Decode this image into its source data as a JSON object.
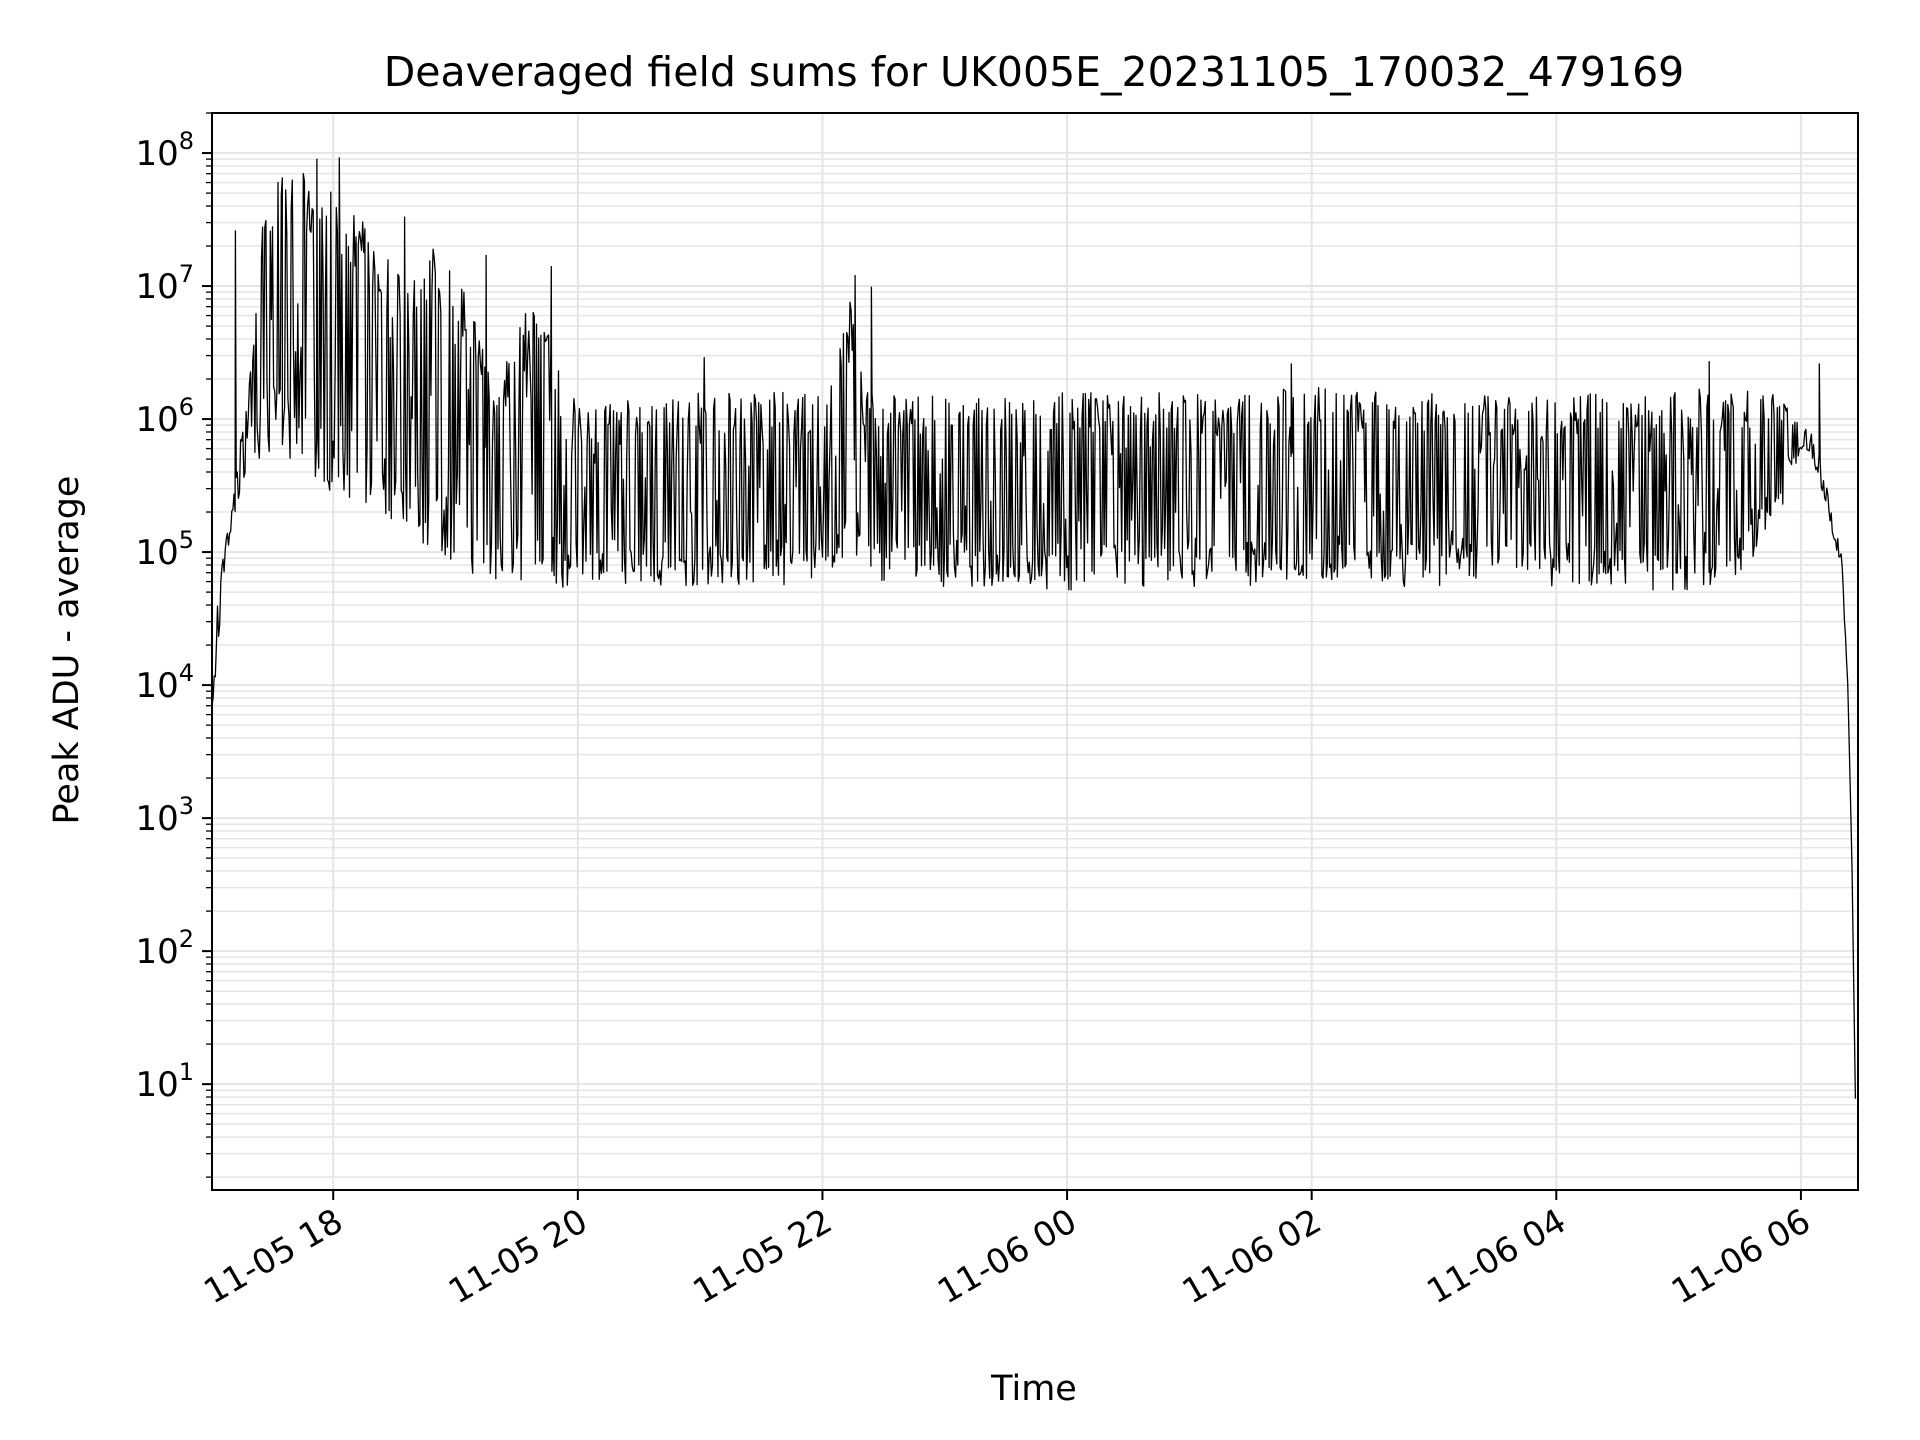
{
  "chart_data": {
    "type": "line",
    "title": "Deaveraged field sums for UK005E_20231105_170032_479169",
    "xlabel": "Time",
    "ylabel": "Peak ADU - average",
    "yscale": "log",
    "ylim": [
      1.6,
      200000000
    ],
    "xlim": [
      "2023-11-05 17:00:32",
      "2023-11-06 06:28:00"
    ],
    "x_ticks": [
      "11-05 18",
      "11-05 20",
      "11-05 22",
      "11-06 00",
      "11-06 02",
      "11-06 04",
      "11-06 06"
    ],
    "y_ticks": [
      {
        "base": "10",
        "exp": "1",
        "value": 10
      },
      {
        "base": "10",
        "exp": "2",
        "value": 100
      },
      {
        "base": "10",
        "exp": "3",
        "value": 1000
      },
      {
        "base": "10",
        "exp": "4",
        "value": 10000
      },
      {
        "base": "10",
        "exp": "5",
        "value": 100000
      },
      {
        "base": "10",
        "exp": "6",
        "value": 1000000
      },
      {
        "base": "10",
        "exp": "7",
        "value": 10000000
      },
      {
        "base": "10",
        "exp": "8",
        "value": 100000000
      }
    ],
    "grid": true,
    "line_color": "#000000",
    "grid_color": "#e5e5e5",
    "series": [
      {
        "x": [
          "2023-11-05 17:00:32",
          "2023-11-05 17:03",
          "2023-11-05 17:06",
          "2023-11-05 17:10",
          "2023-11-05 17:15",
          "2023-11-05 17:20",
          "2023-11-05 17:25",
          "2023-11-05 17:30",
          "2023-11-05 17:40",
          "2023-11-05 17:55",
          "2023-11-05 18:10",
          "2023-11-05 18:30",
          "2023-11-05 18:50",
          "2023-11-05 19:05",
          "2023-11-05 19:20",
          "2023-11-05 19:40",
          "2023-11-05 19:50",
          "2023-11-05 20:00",
          "2023-11-05 20:30",
          "2023-11-05 21:00",
          "2023-11-05 21:30",
          "2023-11-05 22:00",
          "2023-11-05 22:15",
          "2023-11-05 22:20",
          "2023-11-05 22:30",
          "2023-11-05 23:00",
          "2023-11-05 23:40",
          "2023-11-06 00:00",
          "2023-11-06 00:30",
          "2023-11-06 01:00",
          "2023-11-06 01:30",
          "2023-11-06 02:00",
          "2023-11-06 02:30",
          "2023-11-06 03:00",
          "2023-11-06 03:30",
          "2023-11-06 04:00",
          "2023-11-06 04:30",
          "2023-11-06 05:00",
          "2023-11-06 05:30",
          "2023-11-06 05:50",
          "2023-11-06 06:00",
          "2023-11-06 06:05",
          "2023-11-06 06:10",
          "2023-11-06 06:15",
          "2023-11-06 06:20",
          "2023-11-06 06:23",
          "2023-11-06 06:25",
          "2023-11-06 06:27"
        ],
        "upper": [
          7000,
          40000,
          100000,
          200000,
          800000,
          3000000,
          40000000,
          60000000,
          80000000,
          60000000,
          40000000,
          15000000,
          20000000,
          10000000,
          2000000,
          10000000,
          3000000,
          1200000,
          1600000,
          1600000,
          1600000,
          1600000,
          10000000,
          1600000,
          1600000,
          1500000,
          1500000,
          1600000,
          1600000,
          1600000,
          1600000,
          1800000,
          1600000,
          1600000,
          1500000,
          1500000,
          1600000,
          1700000,
          1700000,
          1500000,
          900000,
          800000,
          500000,
          200000,
          100000,
          10000,
          500,
          4
        ],
        "lower": [
          7000,
          12000,
          60000,
          150000,
          300000,
          400000,
          500000,
          600000,
          400000,
          300000,
          250000,
          150000,
          100000,
          70000,
          60000,
          60000,
          50000,
          60000,
          55000,
          55000,
          55000,
          55000,
          60000,
          55000,
          55000,
          55000,
          55000,
          50000,
          55000,
          55000,
          55000,
          60000,
          55000,
          55000,
          55000,
          55000,
          55000,
          50000,
          60000,
          200000,
          600000,
          500000,
          300000,
          150000,
          70000,
          10000,
          500,
          4
        ],
        "spikes": [
          {
            "x": "2023-11-05 17:12",
            "y": 26000000
          },
          {
            "x": "2023-11-05 17:35",
            "y": 65000000
          },
          {
            "x": "2023-11-05 17:52",
            "y": 90000000
          },
          {
            "x": "2023-11-05 18:03",
            "y": 92000000
          },
          {
            "x": "2023-11-05 18:35",
            "y": 33000000
          },
          {
            "x": "2023-11-05 19:15",
            "y": 17000000
          },
          {
            "x": "2023-11-05 19:47",
            "y": 14000000
          },
          {
            "x": "2023-11-05 21:02",
            "y": 2900000
          },
          {
            "x": "2023-11-05 22:16",
            "y": 12000000
          },
          {
            "x": "2023-11-05 22:24",
            "y": 9800000
          },
          {
            "x": "2023-11-06 01:50",
            "y": 2600000
          },
          {
            "x": "2023-11-06 05:15",
            "y": 2700000
          },
          {
            "x": "2023-11-06 06:09",
            "y": 2600000
          }
        ]
      }
    ]
  }
}
